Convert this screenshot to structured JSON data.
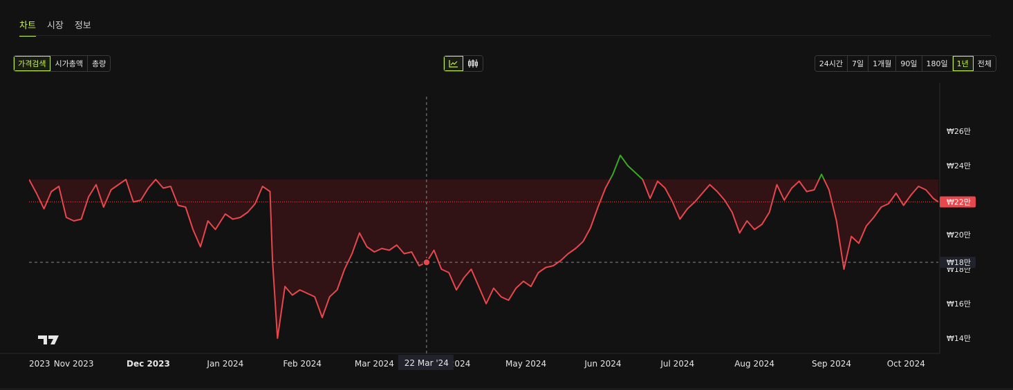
{
  "tabs": [
    {
      "label": "차트",
      "active": true
    },
    {
      "label": "시장",
      "active": false
    },
    {
      "label": "정보",
      "active": false
    }
  ],
  "metric_buttons": [
    {
      "label": "가격검색",
      "active": true
    },
    {
      "label": "시가총액",
      "active": false
    },
    {
      "label": "총량",
      "active": false
    }
  ],
  "chart_type_buttons": [
    {
      "icon": "line-chart-icon",
      "active": true
    },
    {
      "icon": "candlestick-icon",
      "active": false
    }
  ],
  "range_buttons": [
    {
      "label": "24시간",
      "active": false
    },
    {
      "label": "7일",
      "active": false
    },
    {
      "label": "1개월",
      "active": false
    },
    {
      "label": "90일",
      "active": false
    },
    {
      "label": "180일",
      "active": false
    },
    {
      "label": "1년",
      "active": true
    },
    {
      "label": "전체",
      "active": false
    }
  ],
  "colors": {
    "accent": "#c6f24e",
    "down": "#e8474c",
    "up": "#3aa820",
    "background": "#121212"
  },
  "chart_data": {
    "type": "line",
    "ylim": [
      13.2,
      28
    ],
    "y_unit": "만 KRW",
    "y_ticks": [
      {
        "value": 14,
        "label": "₩14만"
      },
      {
        "value": 16,
        "label": "₩16만"
      },
      {
        "value": 18,
        "label": "₩18만"
      },
      {
        "value": 20,
        "label": "₩20만"
      },
      {
        "value": 22,
        "label": "₩22만"
      },
      {
        "value": 24,
        "label": "₩24만"
      },
      {
        "value": 26,
        "label": "₩26만"
      }
    ],
    "x_ticks": [
      {
        "date": "2023-10-14",
        "label": "2023",
        "bold": false
      },
      {
        "date": "2023-11-01",
        "label": "Nov 2023",
        "bold": false
      },
      {
        "date": "2023-12-01",
        "label": "Dec 2023",
        "bold": true
      },
      {
        "date": "2024-01-01",
        "label": "Jan 2024",
        "bold": false
      },
      {
        "date": "2024-02-01",
        "label": "Feb 2024",
        "bold": false
      },
      {
        "date": "2024-03-01",
        "label": "Mar 2024",
        "bold": false
      },
      {
        "date": "2024-04-01",
        "label": "Apr 2024",
        "bold": false
      },
      {
        "date": "2024-05-01",
        "label": "May 2024",
        "bold": false
      },
      {
        "date": "2024-06-01",
        "label": "Jun 2024",
        "bold": false
      },
      {
        "date": "2024-07-01",
        "label": "Jul 2024",
        "bold": false
      },
      {
        "date": "2024-08-01",
        "label": "Aug 2024",
        "bold": false
      },
      {
        "date": "2024-09-01",
        "label": "Sep 2024",
        "bold": false
      },
      {
        "date": "2024-10-01",
        "label": "Oct 2024",
        "bold": false
      }
    ],
    "x_range": [
      "2023-10-14",
      "2024-10-14"
    ],
    "baseline": 23.2,
    "current_price": {
      "value": 21.9,
      "label": "₩22만"
    },
    "crosshair": {
      "date": "2024-03-22",
      "value": 18.4,
      "x_label": "22 Mar '24",
      "y_label": "₩18만"
    },
    "series": [
      {
        "points": [
          [
            "2023-10-14",
            23.2
          ],
          [
            "2023-10-17",
            22.4
          ],
          [
            "2023-10-20",
            21.5
          ],
          [
            "2023-10-23",
            22.5
          ],
          [
            "2023-10-26",
            22.8
          ],
          [
            "2023-10-29",
            21.0
          ],
          [
            "2023-11-01",
            20.8
          ],
          [
            "2023-11-04",
            20.9
          ],
          [
            "2023-11-07",
            22.2
          ],
          [
            "2023-11-10",
            22.9
          ],
          [
            "2023-11-13",
            21.6
          ],
          [
            "2023-11-16",
            22.6
          ],
          [
            "2023-11-19",
            22.9
          ],
          [
            "2023-11-22",
            23.2
          ],
          [
            "2023-11-25",
            21.9
          ],
          [
            "2023-11-28",
            22.0
          ],
          [
            "2023-12-01",
            22.7
          ],
          [
            "2023-12-04",
            23.2
          ],
          [
            "2023-12-07",
            22.7
          ],
          [
            "2023-12-10",
            22.8
          ],
          [
            "2023-12-13",
            21.7
          ],
          [
            "2023-12-16",
            21.6
          ],
          [
            "2023-12-19",
            20.3
          ],
          [
            "2023-12-22",
            19.3
          ],
          [
            "2023-12-25",
            20.8
          ],
          [
            "2023-12-28",
            20.3
          ],
          [
            "2024-01-01",
            21.2
          ],
          [
            "2024-01-04",
            20.9
          ],
          [
            "2024-01-07",
            21.0
          ],
          [
            "2024-01-10",
            21.3
          ],
          [
            "2024-01-13",
            21.8
          ],
          [
            "2024-01-16",
            22.8
          ],
          [
            "2024-01-19",
            22.5
          ],
          [
            "2024-01-20",
            18.5
          ],
          [
            "2024-01-22",
            14.0
          ],
          [
            "2024-01-25",
            17.0
          ],
          [
            "2024-01-28",
            16.5
          ],
          [
            "2024-01-31",
            16.8
          ],
          [
            "2024-02-03",
            16.6
          ],
          [
            "2024-02-06",
            16.4
          ],
          [
            "2024-02-09",
            15.2
          ],
          [
            "2024-02-12",
            16.4
          ],
          [
            "2024-02-15",
            16.8
          ],
          [
            "2024-02-18",
            18.0
          ],
          [
            "2024-02-21",
            18.9
          ],
          [
            "2024-02-24",
            20.1
          ],
          [
            "2024-02-27",
            19.3
          ],
          [
            "2024-03-01",
            19.0
          ],
          [
            "2024-03-04",
            19.2
          ],
          [
            "2024-03-07",
            19.1
          ],
          [
            "2024-03-10",
            19.4
          ],
          [
            "2024-03-13",
            18.9
          ],
          [
            "2024-03-16",
            19.0
          ],
          [
            "2024-03-19",
            18.2
          ],
          [
            "2024-03-22",
            18.4
          ],
          [
            "2024-03-25",
            19.1
          ],
          [
            "2024-03-28",
            18.0
          ],
          [
            "2024-03-31",
            17.8
          ],
          [
            "2024-04-03",
            16.8
          ],
          [
            "2024-04-06",
            17.5
          ],
          [
            "2024-04-09",
            18.0
          ],
          [
            "2024-04-12",
            17.0
          ],
          [
            "2024-04-15",
            16.0
          ],
          [
            "2024-04-18",
            16.9
          ],
          [
            "2024-04-21",
            16.4
          ],
          [
            "2024-04-24",
            16.2
          ],
          [
            "2024-04-27",
            16.9
          ],
          [
            "2024-04-30",
            17.3
          ],
          [
            "2024-05-03",
            17.0
          ],
          [
            "2024-05-06",
            17.8
          ],
          [
            "2024-05-09",
            18.1
          ],
          [
            "2024-05-12",
            18.2
          ],
          [
            "2024-05-15",
            18.5
          ],
          [
            "2024-05-18",
            18.9
          ],
          [
            "2024-05-21",
            19.2
          ],
          [
            "2024-05-24",
            19.6
          ],
          [
            "2024-05-27",
            20.4
          ],
          [
            "2024-05-30",
            21.6
          ],
          [
            "2024-06-02",
            22.7
          ],
          [
            "2024-06-05",
            23.5
          ],
          [
            "2024-06-08",
            24.6
          ],
          [
            "2024-06-11",
            24.0
          ],
          [
            "2024-06-14",
            23.6
          ],
          [
            "2024-06-17",
            23.2
          ],
          [
            "2024-06-20",
            22.1
          ],
          [
            "2024-06-23",
            23.1
          ],
          [
            "2024-06-26",
            22.7
          ],
          [
            "2024-06-29",
            21.9
          ],
          [
            "2024-07-02",
            20.9
          ],
          [
            "2024-07-05",
            21.5
          ],
          [
            "2024-07-08",
            21.9
          ],
          [
            "2024-07-11",
            22.4
          ],
          [
            "2024-07-14",
            22.9
          ],
          [
            "2024-07-17",
            22.5
          ],
          [
            "2024-07-20",
            22.0
          ],
          [
            "2024-07-23",
            21.3
          ],
          [
            "2024-07-26",
            20.1
          ],
          [
            "2024-07-29",
            20.8
          ],
          [
            "2024-08-01",
            20.3
          ],
          [
            "2024-08-04",
            20.6
          ],
          [
            "2024-08-07",
            21.3
          ],
          [
            "2024-08-10",
            22.9
          ],
          [
            "2024-08-13",
            22.0
          ],
          [
            "2024-08-16",
            22.7
          ],
          [
            "2024-08-19",
            23.1
          ],
          [
            "2024-08-22",
            22.5
          ],
          [
            "2024-08-25",
            22.6
          ],
          [
            "2024-08-28",
            23.5
          ],
          [
            "2024-08-31",
            22.6
          ],
          [
            "2024-09-03",
            20.8
          ],
          [
            "2024-09-06",
            18.0
          ],
          [
            "2024-09-09",
            19.9
          ],
          [
            "2024-09-12",
            19.5
          ],
          [
            "2024-09-15",
            20.5
          ],
          [
            "2024-09-18",
            21.0
          ],
          [
            "2024-09-21",
            21.6
          ],
          [
            "2024-09-24",
            21.8
          ],
          [
            "2024-09-27",
            22.4
          ],
          [
            "2024-09-30",
            21.7
          ],
          [
            "2024-10-03",
            22.3
          ],
          [
            "2024-10-06",
            22.8
          ],
          [
            "2024-10-09",
            22.6
          ],
          [
            "2024-10-12",
            22.1
          ],
          [
            "2024-10-14",
            21.9
          ]
        ]
      }
    ]
  }
}
